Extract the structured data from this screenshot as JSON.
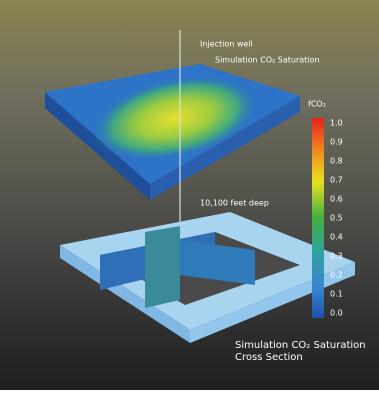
{
  "labels": {
    "well": "Injection well",
    "top_title": "Simulation CO₂ Saturation",
    "depth": "10,100 feet deep",
    "legend_title": "fCO₂",
    "bottom_title": "Simulation CO₂ Saturation",
    "bottom_subtitle": "Cross Section"
  },
  "colorbar": {
    "ticks": [
      "1.0",
      "0.9",
      "0.8",
      "0.7",
      "0.6",
      "0.5",
      "0.4",
      "0.3",
      "0.2",
      "0.1",
      "0.0"
    ]
  }
}
